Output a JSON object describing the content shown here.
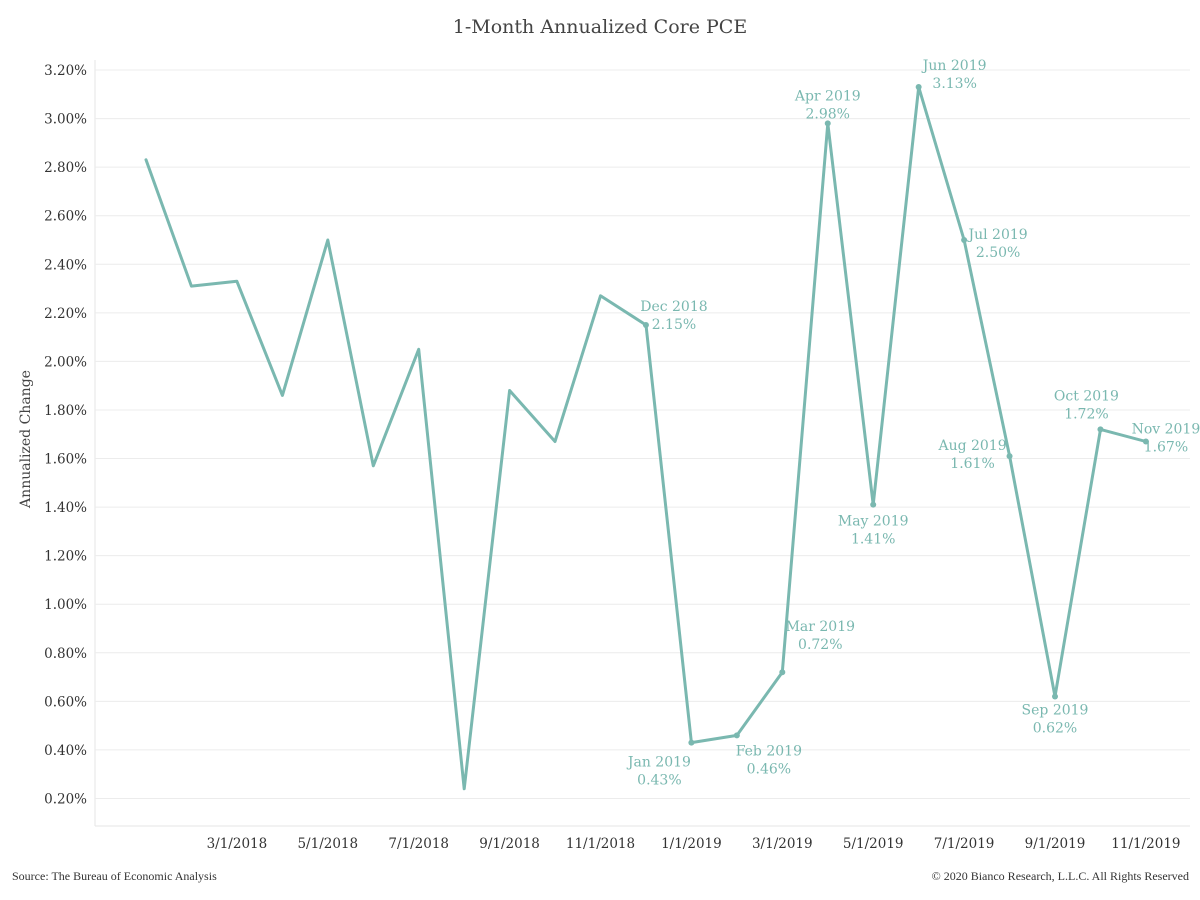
{
  "footer": {
    "source": "Source: The Bureau of Economic Analysis",
    "copyright": "© 2020 Bianco Research, L.L.C. All Rights Reserved"
  },
  "colors": {
    "line": "#7ab8b0",
    "grid": "#ececec",
    "text": "#333333"
  },
  "chart_data": {
    "type": "line",
    "title": "1-Month Annualized Core PCE",
    "xlabel": "",
    "ylabel": "Annualized Change",
    "ylim": [
      0.2,
      3.2
    ],
    "yticks": [
      "0.20%",
      "0.40%",
      "0.60%",
      "0.80%",
      "1.00%",
      "1.20%",
      "1.40%",
      "1.60%",
      "1.80%",
      "2.00%",
      "2.20%",
      "2.40%",
      "2.60%",
      "2.80%",
      "3.00%",
      "3.20%"
    ],
    "xticks": [
      "3/1/2018",
      "5/1/2018",
      "7/1/2018",
      "9/1/2018",
      "11/1/2018",
      "1/1/2019",
      "3/1/2019",
      "5/1/2019",
      "7/1/2019",
      "9/1/2019",
      "11/1/2019"
    ],
    "grid": true,
    "series": [
      {
        "x": [
          "1/1/2018",
          "2/1/2018",
          "3/1/2018",
          "4/1/2018",
          "5/1/2018",
          "6/1/2018",
          "7/1/2018",
          "8/1/2018",
          "9/1/2018",
          "10/1/2018",
          "11/1/2018",
          "12/1/2018",
          "1/1/2019",
          "2/1/2019",
          "3/1/2019",
          "4/1/2019",
          "5/1/2019",
          "6/1/2019",
          "7/1/2019",
          "8/1/2019",
          "9/1/2019",
          "10/1/2019",
          "11/1/2019"
        ],
        "values": [
          2.83,
          2.31,
          2.33,
          1.86,
          2.5,
          1.57,
          2.05,
          0.24,
          1.88,
          1.67,
          2.27,
          2.15,
          0.43,
          0.46,
          0.72,
          2.98,
          1.41,
          3.13,
          2.5,
          1.61,
          0.62,
          1.72,
          1.67
        ]
      }
    ],
    "annotations": [
      {
        "index": 11,
        "label": "Dec 2018",
        "value": "2.15%"
      },
      {
        "index": 12,
        "label": "Jan 2019",
        "value": "0.43%"
      },
      {
        "index": 13,
        "label": "Feb 2019",
        "value": "0.46%"
      },
      {
        "index": 14,
        "label": "Mar 2019",
        "value": "0.72%"
      },
      {
        "index": 15,
        "label": "Apr 2019",
        "value": "2.98%"
      },
      {
        "index": 16,
        "label": "May 2019",
        "value": "1.41%"
      },
      {
        "index": 17,
        "label": "Jun 2019",
        "value": "3.13%"
      },
      {
        "index": 18,
        "label": "Jul 2019",
        "value": "2.50%"
      },
      {
        "index": 19,
        "label": "Aug 2019",
        "value": "1.61%"
      },
      {
        "index": 20,
        "label": "Sep 2019",
        "value": "0.62%"
      },
      {
        "index": 21,
        "label": "Oct 2019",
        "value": "1.72%"
      },
      {
        "index": 22,
        "label": "Nov 2019",
        "value": "1.67%"
      }
    ]
  }
}
